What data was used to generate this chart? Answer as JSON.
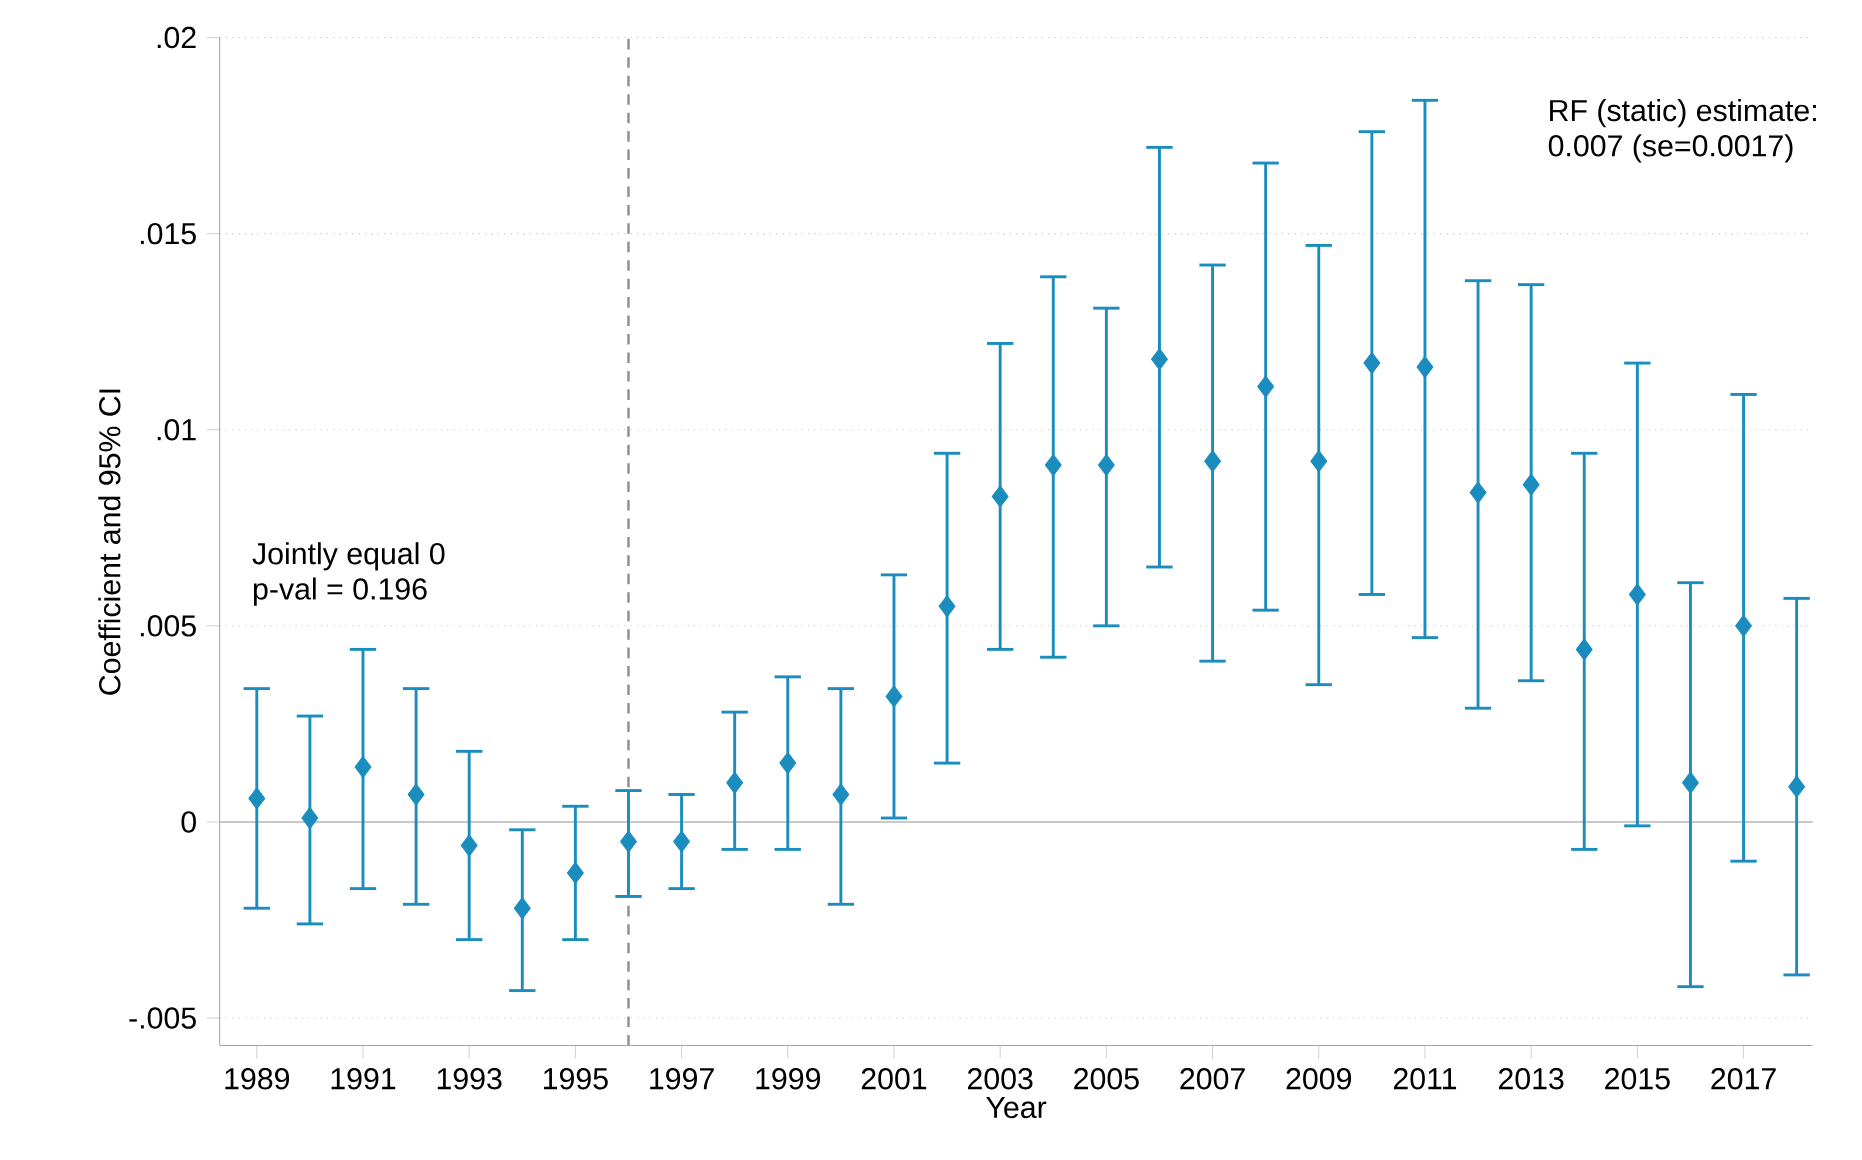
{
  "chart_data": {
    "type": "scatter",
    "xlabel": "Year",
    "ylabel": "Coefficient and 95% CI",
    "x": [
      1989,
      1990,
      1991,
      1992,
      1993,
      1994,
      1995,
      1996,
      1997,
      1998,
      1999,
      2000,
      2001,
      2002,
      2003,
      2004,
      2005,
      2006,
      2007,
      2008,
      2009,
      2010,
      2011,
      2012,
      2013,
      2014,
      2015,
      2016,
      2017,
      2018
    ],
    "values": [
      0.0006,
      0.0001,
      0.0014,
      0.0007,
      -0.0006,
      -0.0022,
      -0.0013,
      -0.0005,
      -0.0005,
      0.001,
      0.0015,
      0.0007,
      0.0032,
      0.0055,
      0.0083,
      0.0091,
      0.0091,
      0.0118,
      0.0092,
      0.0111,
      0.0092,
      0.0117,
      0.0116,
      0.0084,
      0.0086,
      0.0044,
      0.0058,
      0.001,
      0.005,
      0.0009
    ],
    "errors": [
      [
        -0.0022,
        0.0034
      ],
      [
        -0.0026,
        0.0027
      ],
      [
        -0.0017,
        0.0044
      ],
      [
        -0.0021,
        0.0034
      ],
      [
        -0.003,
        0.0018
      ],
      [
        -0.0043,
        -0.0002
      ],
      [
        -0.003,
        0.0004
      ],
      [
        -0.0019,
        0.0008
      ],
      [
        -0.0017,
        0.0007
      ],
      [
        -0.0007,
        0.0028
      ],
      [
        -0.0007,
        0.0037
      ],
      [
        -0.0021,
        0.0034
      ],
      [
        0.0001,
        0.0063
      ],
      [
        0.0015,
        0.0094
      ],
      [
        0.0044,
        0.0122
      ],
      [
        0.0042,
        0.0139
      ],
      [
        0.005,
        0.0131
      ],
      [
        0.0065,
        0.0172
      ],
      [
        0.0041,
        0.0142
      ],
      [
        0.0054,
        0.0168
      ],
      [
        0.0035,
        0.0147
      ],
      [
        0.0058,
        0.0176
      ],
      [
        0.0047,
        0.0184
      ],
      [
        0.0029,
        0.0138
      ],
      [
        0.0036,
        0.0137
      ],
      [
        -0.0007,
        0.0094
      ],
      [
        -0.0001,
        0.0117
      ],
      [
        -0.0042,
        0.0061
      ],
      [
        -0.001,
        0.0109
      ],
      [
        -0.0039,
        0.0057
      ]
    ],
    "color": "#1a8dbe",
    "marker": "diamond",
    "xlim": [
      1988.3,
      2018.3
    ],
    "xticks": [
      1989,
      1991,
      1993,
      1995,
      1997,
      1999,
      2001,
      2003,
      2005,
      2007,
      2009,
      2011,
      2013,
      2015,
      2017
    ],
    "ylim": [
      -0.0057,
      0.02
    ],
    "yticks": [
      {
        "value": -0.005,
        "label": "-.005"
      },
      {
        "value": 0,
        "label": "0"
      },
      {
        "value": 0.005,
        "label": ".005"
      },
      {
        "value": 0.01,
        "label": ".01"
      },
      {
        "value": 0.015,
        "label": ".015"
      },
      {
        "value": 0.02,
        "label": ".02"
      }
    ],
    "grid": "y",
    "ref_lines": [
      {
        "axis": "y",
        "value": 0,
        "color": "#c8c8c8",
        "line_style": "solid"
      },
      {
        "axis": "x",
        "value": 1996,
        "color": "#8c8c8c",
        "line_style": "dashed"
      }
    ],
    "annotations": [
      "Jointly equal 0",
      "p-val = 0.196",
      "RF (static) estimate:",
      "0.007 (se=0.0017)"
    ]
  }
}
